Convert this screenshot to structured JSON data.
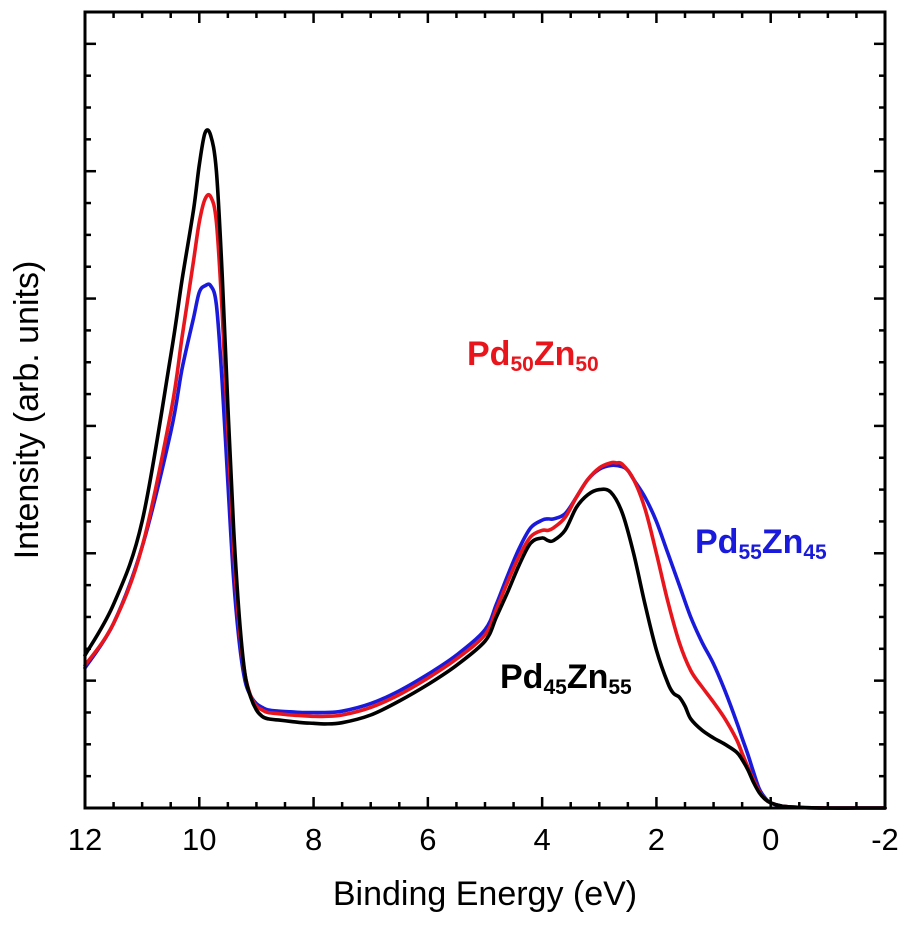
{
  "chart_data": {
    "type": "line",
    "title": "",
    "xlabel": "Binding Energy (eV)",
    "ylabel": "Intensity (arb. units)",
    "xlim": [
      12,
      -2
    ],
    "ylim": [
      0,
      6.25
    ],
    "x_reversed": true,
    "y_ticklabels_shown": false,
    "grid": false,
    "legend": "none (series labelled inline)",
    "x_ticks": [
      12,
      10,
      8,
      6,
      4,
      2,
      0,
      -2
    ],
    "x_tick_labels": [
      "12",
      "10",
      "8",
      "6",
      "4",
      "2",
      "0",
      "-2"
    ],
    "y_ticks": [
      1,
      2,
      3,
      4,
      5
    ],
    "series": [
      {
        "name": "Pd45Zn55",
        "label_parts": [
          {
            "text": "Pd",
            "sub": false
          },
          {
            "text": "45",
            "sub": true
          },
          {
            "text": "Zn",
            "sub": false
          },
          {
            "text": "55",
            "sub": true
          }
        ],
        "color": "#000000",
        "x": [
          12,
          11.5,
          11,
          10.5,
          10.3,
          10.1,
          10.0,
          9.9,
          9.8,
          9.7,
          9.6,
          9.5,
          9.4,
          9.3,
          9.2,
          9.1,
          9.0,
          8.9,
          8.8,
          8.6,
          8.4,
          8.2,
          8.0,
          7.8,
          7.5,
          7.0,
          6.5,
          6.0,
          5.5,
          5.0,
          4.8,
          4.6,
          4.4,
          4.2,
          4.0,
          3.9,
          3.8,
          3.6,
          3.4,
          3.2,
          3.0,
          2.8,
          2.6,
          2.4,
          2.2,
          2.0,
          1.8,
          1.7,
          1.6,
          1.5,
          1.4,
          1.2,
          1.0,
          0.8,
          0.6,
          0.5,
          0.4,
          0.3,
          0.2,
          0.1,
          0.0,
          -0.2,
          -0.5,
          -1.0,
          -1.5,
          -2.0
        ],
        "y": [
          1.2,
          1.6,
          2.25,
          3.55,
          4.15,
          4.7,
          5.05,
          5.3,
          5.28,
          5.0,
          4.2,
          3.15,
          2.2,
          1.5,
          1.05,
          0.87,
          0.77,
          0.72,
          0.7,
          0.69,
          0.68,
          0.67,
          0.665,
          0.66,
          0.67,
          0.73,
          0.84,
          0.97,
          1.12,
          1.31,
          1.5,
          1.7,
          1.91,
          2.08,
          2.12,
          2.1,
          2.1,
          2.18,
          2.36,
          2.46,
          2.5,
          2.48,
          2.32,
          2.0,
          1.6,
          1.24,
          0.98,
          0.9,
          0.87,
          0.8,
          0.7,
          0.61,
          0.55,
          0.5,
          0.44,
          0.38,
          0.3,
          0.2,
          0.12,
          0.07,
          0.04,
          0.015,
          0.005,
          0.0,
          0.0,
          0.0
        ]
      },
      {
        "name": "Pd50Zn50",
        "label_parts": [
          {
            "text": "Pd",
            "sub": false
          },
          {
            "text": "50",
            "sub": true
          },
          {
            "text": "Zn",
            "sub": false
          },
          {
            "text": "50",
            "sub": true
          }
        ],
        "color": "#e8161c",
        "x": [
          12,
          11.5,
          11,
          10.5,
          10.3,
          10.1,
          10.0,
          9.9,
          9.8,
          9.7,
          9.6,
          9.5,
          9.4,
          9.3,
          9.2,
          9.1,
          9.0,
          8.9,
          8.8,
          8.6,
          8.4,
          8.2,
          8.0,
          7.8,
          7.5,
          7.0,
          6.5,
          6.0,
          5.5,
          5.0,
          4.8,
          4.6,
          4.4,
          4.2,
          4.0,
          3.9,
          3.8,
          3.6,
          3.4,
          3.2,
          3.0,
          2.8,
          2.7,
          2.6,
          2.4,
          2.2,
          2.0,
          1.8,
          1.6,
          1.4,
          1.2,
          1.0,
          0.8,
          0.6,
          0.5,
          0.4,
          0.3,
          0.2,
          0.1,
          0.0,
          -0.2,
          -0.5,
          -1.0,
          -1.5,
          -2.0
        ],
        "y": [
          1.12,
          1.45,
          2.05,
          3.1,
          3.7,
          4.3,
          4.6,
          4.78,
          4.8,
          4.6,
          3.9,
          2.95,
          2.05,
          1.42,
          1.05,
          0.88,
          0.8,
          0.77,
          0.75,
          0.74,
          0.73,
          0.725,
          0.72,
          0.72,
          0.73,
          0.79,
          0.89,
          1.02,
          1.17,
          1.36,
          1.56,
          1.78,
          1.98,
          2.13,
          2.18,
          2.18,
          2.2,
          2.28,
          2.44,
          2.58,
          2.67,
          2.71,
          2.71,
          2.7,
          2.58,
          2.35,
          2.0,
          1.62,
          1.3,
          1.08,
          0.95,
          0.83,
          0.7,
          0.54,
          0.43,
          0.32,
          0.22,
          0.13,
          0.07,
          0.04,
          0.015,
          0.005,
          0.0,
          0.0,
          0.0
        ]
      },
      {
        "name": "Pd55Zn45",
        "label_parts": [
          {
            "text": "Pd",
            "sub": false
          },
          {
            "text": "55",
            "sub": true
          },
          {
            "text": "Zn",
            "sub": false
          },
          {
            "text": "45",
            "sub": true
          }
        ],
        "color": "#1a1adc",
        "x": [
          12,
          11.5,
          11,
          10.5,
          10.3,
          10.1,
          10.0,
          9.9,
          9.8,
          9.7,
          9.6,
          9.5,
          9.4,
          9.3,
          9.2,
          9.1,
          9.0,
          8.9,
          8.8,
          8.6,
          8.4,
          8.2,
          8.0,
          7.8,
          7.5,
          7.0,
          6.5,
          6.0,
          5.5,
          5.0,
          4.8,
          4.6,
          4.4,
          4.2,
          4.0,
          3.9,
          3.8,
          3.6,
          3.4,
          3.2,
          3.0,
          2.8,
          2.6,
          2.5,
          2.4,
          2.2,
          2.0,
          1.8,
          1.6,
          1.4,
          1.2,
          1.0,
          0.8,
          0.6,
          0.5,
          0.4,
          0.3,
          0.2,
          0.1,
          0.0,
          -0.2,
          -0.5,
          -1.0,
          -1.5,
          -2.0
        ],
        "y": [
          1.1,
          1.45,
          2.05,
          2.95,
          3.45,
          3.85,
          4.05,
          4.1,
          4.1,
          3.95,
          3.35,
          2.55,
          1.8,
          1.3,
          1.0,
          0.88,
          0.82,
          0.79,
          0.77,
          0.76,
          0.755,
          0.75,
          0.75,
          0.75,
          0.76,
          0.82,
          0.92,
          1.05,
          1.2,
          1.4,
          1.6,
          1.83,
          2.04,
          2.2,
          2.26,
          2.27,
          2.27,
          2.31,
          2.44,
          2.58,
          2.66,
          2.69,
          2.68,
          2.65,
          2.58,
          2.44,
          2.25,
          2.0,
          1.75,
          1.5,
          1.3,
          1.13,
          0.92,
          0.68,
          0.55,
          0.42,
          0.28,
          0.15,
          0.08,
          0.04,
          0.015,
          0.005,
          0.0,
          0.0,
          0.0
        ]
      }
    ]
  }
}
